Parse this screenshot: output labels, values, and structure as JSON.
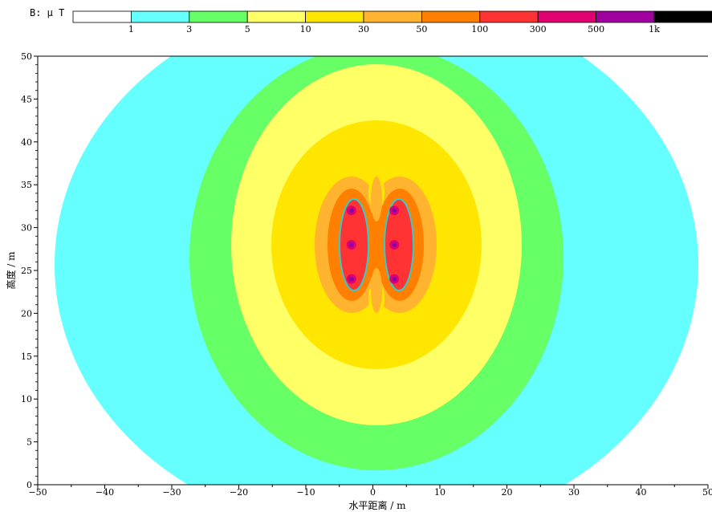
{
  "legend": {
    "label": "B: μ T",
    "colors": [
      "#ffffff",
      "#66ffff",
      "#66ff66",
      "#ffff66",
      "#ffe600",
      "#ffb32e",
      "#ff8000",
      "#ff3333",
      "#e00070",
      "#a000a0",
      "#000000"
    ],
    "ticks": [
      "1",
      "3",
      "5",
      "10",
      "30",
      "50",
      "100",
      "300",
      "500",
      "1k"
    ]
  },
  "chart_data": {
    "type": "heatmap",
    "title": "",
    "xlabel": "水平距离 / m",
    "ylabel": "高度 / m",
    "xlim": [
      -50,
      50
    ],
    "ylim": [
      0,
      50
    ],
    "xticks": [
      -50,
      -40,
      -30,
      -20,
      -10,
      0,
      10,
      20,
      30,
      40,
      50
    ],
    "yticks": [
      0,
      5,
      10,
      15,
      20,
      25,
      30,
      35,
      40,
      45,
      50
    ],
    "grid": false,
    "conductors": [
      {
        "x": -3.2,
        "y": 32
      },
      {
        "x": -3.2,
        "y": 28
      },
      {
        "x": -3.2,
        "y": 24
      },
      {
        "x": 3.2,
        "y": 32
      },
      {
        "x": 3.2,
        "y": 28
      },
      {
        "x": 3.2,
        "y": 24
      }
    ],
    "contour_levels_uT": [
      1,
      3,
      5,
      10,
      30,
      50,
      100,
      300,
      500,
      1000
    ]
  }
}
